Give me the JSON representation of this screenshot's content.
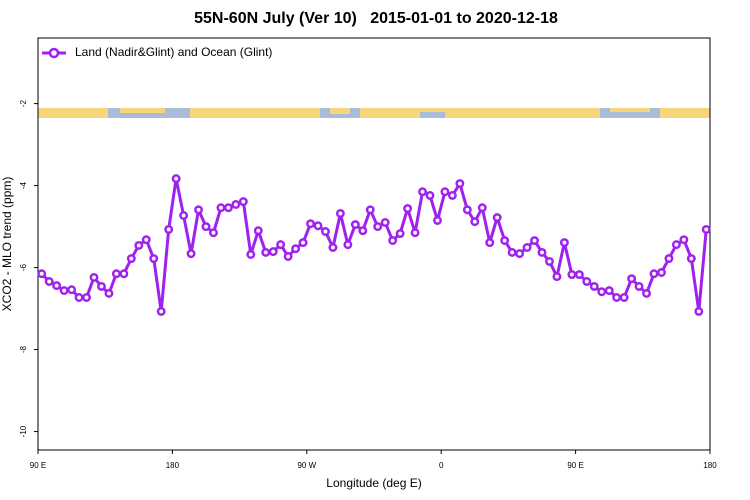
{
  "chart_data": {
    "type": "line",
    "title": "55N-60N July (Ver 10)   2015-01-01 to 2020-12-18",
    "x_label": "Longitude (deg E)",
    "y_label": "XCO2 - MLO trend (ppm)",
    "legend": "top-left",
    "xlim": [
      90,
      540
    ],
    "xticks": [
      {
        "value": 90,
        "label": "90 E"
      },
      180,
      {
        "value": 270,
        "label": "90 W"
      },
      {
        "value": 360,
        "label": "0"
      },
      {
        "value": 450,
        "label": "90 E"
      },
      {
        "value": 540,
        "label": "180"
      }
    ],
    "ylim": [
      -10.45,
      -0.4
    ],
    "yticks": [
      -2,
      -4,
      -6,
      -8,
      -10
    ],
    "x": [
      92.5,
      97.5,
      102.5,
      107.5,
      112.5,
      117.5,
      122.5,
      127.5,
      132.5,
      137.5,
      142.5,
      147.5,
      152.5,
      157.5,
      162.5,
      167.5,
      172.5,
      177.5,
      182.5,
      187.5,
      192.5,
      197.5,
      202.5,
      207.5,
      212.5,
      217.5,
      222.5,
      227.5,
      232.5,
      237.5,
      242.5,
      247.5,
      252.5,
      257.5,
      262.5,
      267.5,
      272.5,
      277.5,
      282.5,
      287.5,
      292.5,
      297.5,
      302.5,
      307.5,
      312.5,
      317.5,
      322.5,
      327.5,
      332.5,
      337.5,
      342.5,
      347.5,
      352.5,
      357.5,
      362.5,
      367.5,
      372.5,
      377.5,
      382.5,
      387.5,
      392.5,
      397.5,
      402.5,
      407.5,
      412.5,
      417.5,
      422.5,
      427.5,
      432.5,
      437.5,
      442.5,
      447.5,
      452.5,
      457.5,
      462.5,
      467.5,
      472.5,
      477.5,
      482.5,
      487.5,
      492.5,
      497.5,
      502.5,
      507.5,
      512.5,
      517.5,
      522.5,
      527.5,
      532.5,
      537.5
    ],
    "series": [
      {
        "name": "Land (Nadir&Glint) and Ocean (Glint)",
        "color": "#a020f0",
        "values": [
          -6.15,
          -6.34,
          -6.44,
          -6.56,
          -6.54,
          -6.73,
          -6.73,
          -6.24,
          -6.46,
          -6.63,
          -6.15,
          -6.15,
          -5.78,
          -5.46,
          -5.32,
          -5.78,
          -7.07,
          -5.07,
          -3.83,
          -4.73,
          -5.66,
          -4.59,
          -5.0,
          -5.15,
          -4.54,
          -4.54,
          -4.46,
          -4.39,
          -5.68,
          -5.1,
          -5.63,
          -5.61,
          -5.44,
          -5.73,
          -5.54,
          -5.39,
          -4.93,
          -4.98,
          -5.12,
          -5.51,
          -4.68,
          -5.44,
          -4.95,
          -5.1,
          -4.59,
          -5.0,
          -4.9,
          -5.34,
          -5.17,
          -4.56,
          -5.15,
          -4.15,
          -4.24,
          -4.85,
          -4.15,
          -4.24,
          -3.95,
          -4.59,
          -4.88,
          -4.54,
          -5.39,
          -4.78,
          -5.34,
          -5.63,
          -5.66,
          -5.51,
          -5.34,
          -5.63,
          -5.85,
          -6.22,
          -5.39,
          -6.17,
          -6.17,
          -6.34,
          -6.46,
          -6.59,
          -6.56,
          -6.73,
          -6.73,
          -6.27,
          -6.46,
          -6.63,
          -6.15,
          -6.12,
          -5.78,
          -5.44,
          -5.32,
          -5.78,
          -7.07,
          -5.07
        ]
      }
    ]
  }
}
